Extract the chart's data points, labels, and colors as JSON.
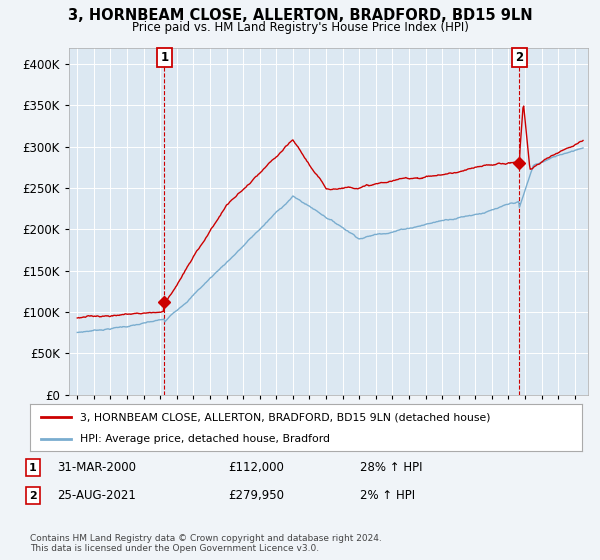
{
  "title": "3, HORNBEAM CLOSE, ALLERTON, BRADFORD, BD15 9LN",
  "subtitle": "Price paid vs. HM Land Registry's House Price Index (HPI)",
  "legend_line1": "3, HORNBEAM CLOSE, ALLERTON, BRADFORD, BD15 9LN (detached house)",
  "legend_line2": "HPI: Average price, detached house, Bradford",
  "footnote": "Contains HM Land Registry data © Crown copyright and database right 2024.\nThis data is licensed under the Open Government Licence v3.0.",
  "sale1_date": "31-MAR-2000",
  "sale1_price": "£112,000",
  "sale1_hpi": "28% ↑ HPI",
  "sale2_date": "25-AUG-2021",
  "sale2_price": "£279,950",
  "sale2_hpi": "2% ↑ HPI",
  "sale1_year": 2000.25,
  "sale1_value": 112000,
  "sale2_year": 2021.65,
  "sale2_value": 279950,
  "red_color": "#cc0000",
  "blue_color": "#7aadcf",
  "bg_color": "#f0f4f8",
  "plot_bg": "#dce8f2",
  "grid_color": "#ffffff",
  "ylim_max": 420000,
  "xlim_start": 1994.5,
  "xlim_end": 2025.8
}
